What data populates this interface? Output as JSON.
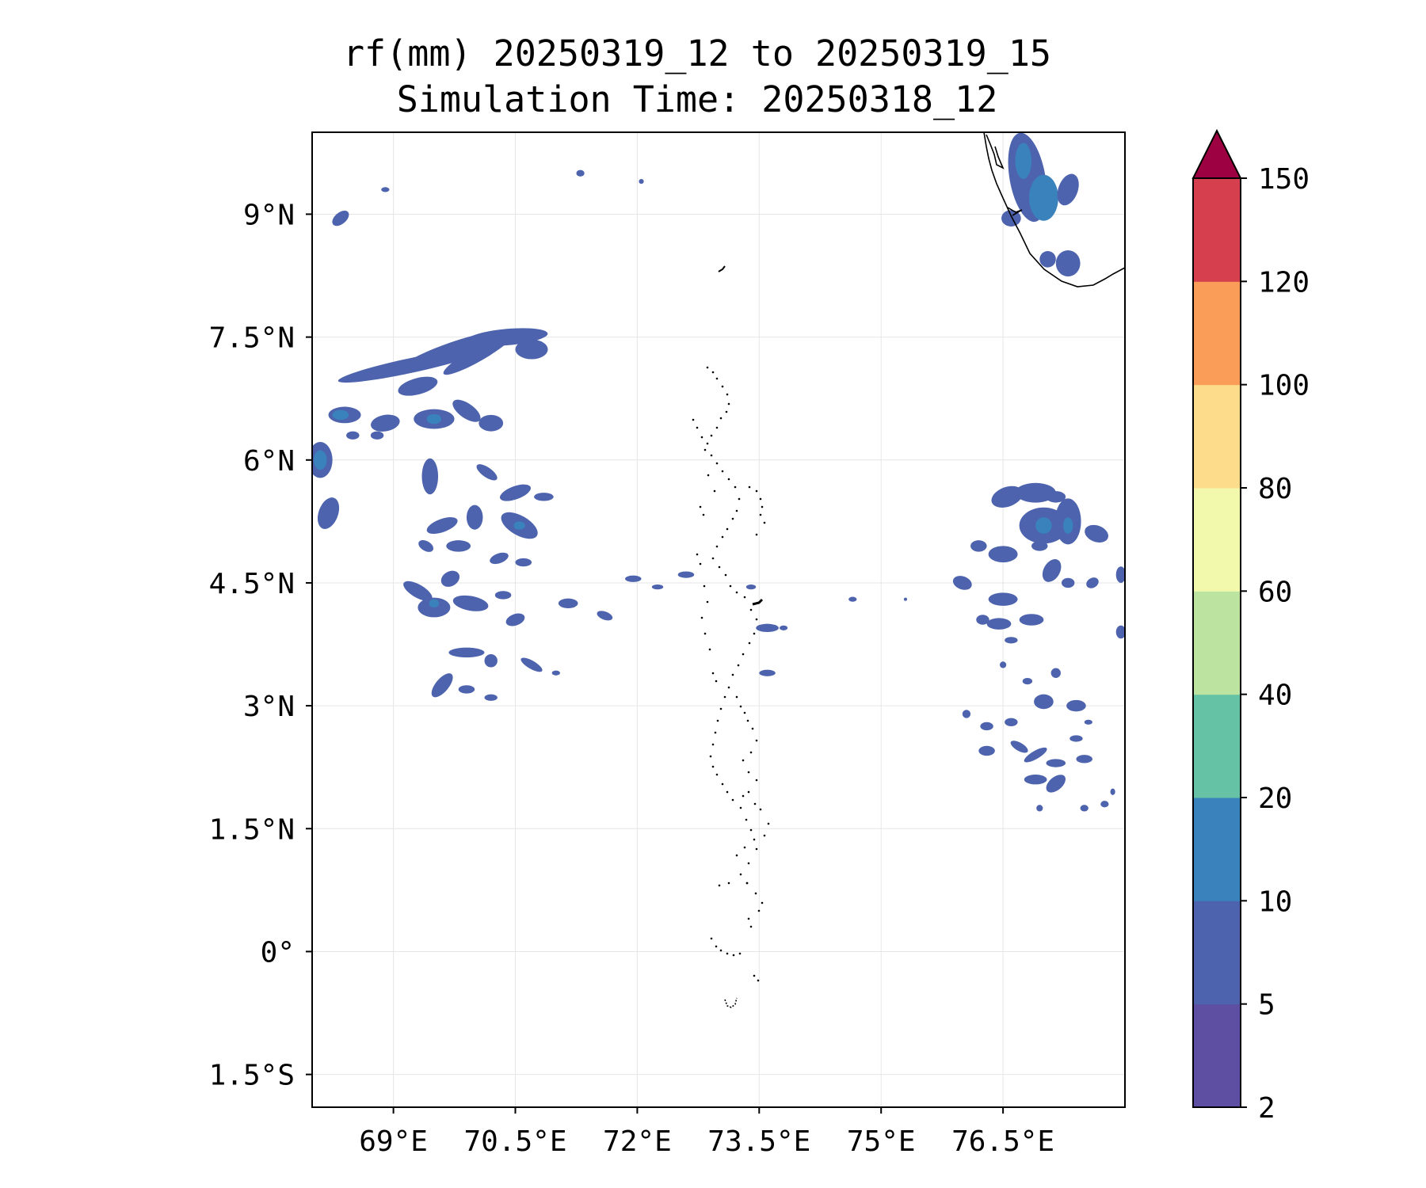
{
  "title": "rf(mm) 20250319_12 to 20250319_15",
  "subtitle": "Simulation Time: 20250318_12",
  "chart_data": {
    "type": "contourf map",
    "xlim": [
      68.0,
      78.0
    ],
    "ylim": [
      -1.9,
      10.0
    ],
    "grid": true,
    "x_ticks": [
      {
        "value": 69.0,
        "label": "69°E"
      },
      {
        "value": 70.5,
        "label": "70.5°E"
      },
      {
        "value": 72.0,
        "label": "72°E"
      },
      {
        "value": 73.5,
        "label": "73.5°E"
      },
      {
        "value": 75.0,
        "label": "75°E"
      },
      {
        "value": 76.5,
        "label": "76.5°E"
      }
    ],
    "y_ticks": [
      {
        "value": 9.0,
        "label": "9°N"
      },
      {
        "value": 7.5,
        "label": "7.5°N"
      },
      {
        "value": 6.0,
        "label": "6°N"
      },
      {
        "value": 4.5,
        "label": "4.5°N"
      },
      {
        "value": 3.0,
        "label": "3°N"
      },
      {
        "value": 1.5,
        "label": "1.5°N"
      },
      {
        "value": 0.0,
        "label": "0°"
      },
      {
        "value": -1.5,
        "label": "1.5°S"
      }
    ],
    "colorbar": {
      "extend": "max",
      "levels": [
        2,
        5,
        10,
        20,
        40,
        60,
        80,
        100,
        120,
        150
      ],
      "labels": [
        "2",
        "5",
        "10",
        "20",
        "40",
        "60",
        "80",
        "100",
        "120",
        "150"
      ],
      "colors": [
        "#5e4fa2",
        "#4d63ad",
        "#3a82bc",
        "#66c2a5",
        "#bce4a0",
        "#f2f9ad",
        "#fddd8b",
        "#f99d59",
        "#d6404e",
        "#9e0142"
      ]
    },
    "rain_cells": [
      {
        "lon": 69.2,
        "lat": 7.15,
        "rx": 0.9,
        "ry": 0.09,
        "rot": -12,
        "level": 5
      },
      {
        "lon": 69.8,
        "lat": 7.35,
        "rx": 0.7,
        "ry": 0.11,
        "rot": -18,
        "level": 5
      },
      {
        "lon": 70.4,
        "lat": 7.5,
        "rx": 0.5,
        "ry": 0.1,
        "rot": -5,
        "level": 5
      },
      {
        "lon": 70.05,
        "lat": 7.3,
        "rx": 0.5,
        "ry": 0.09,
        "rot": -30,
        "level": 5
      },
      {
        "lon": 70.7,
        "lat": 7.35,
        "rx": 0.2,
        "ry": 0.12,
        "rot": 0,
        "level": 5
      },
      {
        "lon": 68.35,
        "lat": 8.95,
        "rx": 0.12,
        "ry": 0.07,
        "rot": -40,
        "level": 5
      },
      {
        "lon": 68.9,
        "lat": 9.3,
        "rx": 0.05,
        "ry": 0.03,
        "rot": 0,
        "level": 5
      },
      {
        "lon": 71.3,
        "lat": 9.5,
        "rx": 0.05,
        "ry": 0.04,
        "rot": 0,
        "level": 5
      },
      {
        "lon": 72.05,
        "lat": 9.4,
        "rx": 0.03,
        "ry": 0.03,
        "rot": 0,
        "level": 5
      },
      {
        "lon": 68.4,
        "lat": 6.55,
        "rx": 0.2,
        "ry": 0.1,
        "rot": 0,
        "level": 5
      },
      {
        "lon": 68.35,
        "lat": 6.55,
        "rx": 0.1,
        "ry": 0.06,
        "rot": 0,
        "level": 10
      },
      {
        "lon": 68.9,
        "lat": 6.45,
        "rx": 0.18,
        "ry": 0.1,
        "rot": -10,
        "level": 5
      },
      {
        "lon": 69.3,
        "lat": 6.9,
        "rx": 0.25,
        "ry": 0.1,
        "rot": -15,
        "level": 5
      },
      {
        "lon": 69.5,
        "lat": 6.5,
        "rx": 0.25,
        "ry": 0.12,
        "rot": 0,
        "level": 5
      },
      {
        "lon": 69.5,
        "lat": 6.5,
        "rx": 0.09,
        "ry": 0.06,
        "rot": 0,
        "level": 10
      },
      {
        "lon": 69.9,
        "lat": 6.6,
        "rx": 0.2,
        "ry": 0.09,
        "rot": 35,
        "level": 5
      },
      {
        "lon": 70.2,
        "lat": 6.45,
        "rx": 0.15,
        "ry": 0.1,
        "rot": 0,
        "level": 5
      },
      {
        "lon": 68.1,
        "lat": 6.0,
        "rx": 0.15,
        "ry": 0.22,
        "rot": 0,
        "level": 5
      },
      {
        "lon": 68.1,
        "lat": 6.0,
        "rx": 0.08,
        "ry": 0.12,
        "rot": 0,
        "level": 10
      },
      {
        "lon": 68.2,
        "lat": 5.35,
        "rx": 0.12,
        "ry": 0.2,
        "rot": 20,
        "level": 5
      },
      {
        "lon": 68.5,
        "lat": 6.3,
        "rx": 0.08,
        "ry": 0.05,
        "rot": 0,
        "level": 5
      },
      {
        "lon": 68.8,
        "lat": 6.3,
        "rx": 0.08,
        "ry": 0.05,
        "rot": 0,
        "level": 5
      },
      {
        "lon": 69.45,
        "lat": 5.8,
        "rx": 0.1,
        "ry": 0.22,
        "rot": 0,
        "level": 5
      },
      {
        "lon": 70.15,
        "lat": 5.85,
        "rx": 0.15,
        "ry": 0.06,
        "rot": 35,
        "level": 5
      },
      {
        "lon": 70.5,
        "lat": 5.6,
        "rx": 0.2,
        "ry": 0.08,
        "rot": -20,
        "level": 5
      },
      {
        "lon": 70.85,
        "lat": 5.55,
        "rx": 0.12,
        "ry": 0.05,
        "rot": 0,
        "level": 5
      },
      {
        "lon": 69.6,
        "lat": 5.2,
        "rx": 0.2,
        "ry": 0.08,
        "rot": -20,
        "level": 5
      },
      {
        "lon": 70.0,
        "lat": 5.3,
        "rx": 0.1,
        "ry": 0.15,
        "rot": 0,
        "level": 5
      },
      {
        "lon": 70.55,
        "lat": 5.2,
        "rx": 0.25,
        "ry": 0.12,
        "rot": 30,
        "level": 5
      },
      {
        "lon": 70.55,
        "lat": 5.2,
        "rx": 0.07,
        "ry": 0.05,
        "rot": 0,
        "level": 10
      },
      {
        "lon": 69.4,
        "lat": 4.95,
        "rx": 0.1,
        "ry": 0.06,
        "rot": 30,
        "level": 5
      },
      {
        "lon": 69.8,
        "lat": 4.95,
        "rx": 0.15,
        "ry": 0.07,
        "rot": 0,
        "level": 5
      },
      {
        "lon": 70.3,
        "lat": 4.8,
        "rx": 0.12,
        "ry": 0.06,
        "rot": -20,
        "level": 5
      },
      {
        "lon": 70.6,
        "lat": 4.75,
        "rx": 0.1,
        "ry": 0.05,
        "rot": 0,
        "level": 5
      },
      {
        "lon": 69.7,
        "lat": 4.55,
        "rx": 0.12,
        "ry": 0.09,
        "rot": -30,
        "level": 5
      },
      {
        "lon": 69.3,
        "lat": 4.4,
        "rx": 0.2,
        "ry": 0.08,
        "rot": 30,
        "level": 5
      },
      {
        "lon": 69.5,
        "lat": 4.2,
        "rx": 0.2,
        "ry": 0.12,
        "rot": 0,
        "level": 5
      },
      {
        "lon": 69.5,
        "lat": 4.25,
        "rx": 0.06,
        "ry": 0.05,
        "rot": 0,
        "level": 10
      },
      {
        "lon": 69.95,
        "lat": 4.25,
        "rx": 0.22,
        "ry": 0.09,
        "rot": 10,
        "level": 5
      },
      {
        "lon": 70.35,
        "lat": 4.35,
        "rx": 0.1,
        "ry": 0.05,
        "rot": 0,
        "level": 5
      },
      {
        "lon": 70.5,
        "lat": 4.05,
        "rx": 0.12,
        "ry": 0.07,
        "rot": -20,
        "level": 5
      },
      {
        "lon": 71.15,
        "lat": 4.25,
        "rx": 0.12,
        "ry": 0.06,
        "rot": 0,
        "level": 5
      },
      {
        "lon": 71.6,
        "lat": 4.1,
        "rx": 0.1,
        "ry": 0.05,
        "rot": 20,
        "level": 5
      },
      {
        "lon": 69.9,
        "lat": 3.65,
        "rx": 0.22,
        "ry": 0.06,
        "rot": 0,
        "level": 5
      },
      {
        "lon": 70.2,
        "lat": 3.55,
        "rx": 0.08,
        "ry": 0.08,
        "rot": 0,
        "level": 5
      },
      {
        "lon": 69.6,
        "lat": 3.25,
        "rx": 0.18,
        "ry": 0.08,
        "rot": -50,
        "level": 5
      },
      {
        "lon": 69.9,
        "lat": 3.2,
        "rx": 0.1,
        "ry": 0.05,
        "rot": 0,
        "level": 5
      },
      {
        "lon": 70.2,
        "lat": 3.1,
        "rx": 0.08,
        "ry": 0.04,
        "rot": 0,
        "level": 5
      },
      {
        "lon": 70.7,
        "lat": 3.5,
        "rx": 0.15,
        "ry": 0.05,
        "rot": 30,
        "level": 5
      },
      {
        "lon": 71.0,
        "lat": 3.4,
        "rx": 0.05,
        "ry": 0.03,
        "rot": 0,
        "level": 5
      },
      {
        "lon": 71.95,
        "lat": 4.55,
        "rx": 0.1,
        "ry": 0.04,
        "rot": 0,
        "level": 5
      },
      {
        "lon": 72.25,
        "lat": 4.45,
        "rx": 0.07,
        "ry": 0.03,
        "rot": 0,
        "level": 5
      },
      {
        "lon": 72.6,
        "lat": 4.6,
        "rx": 0.1,
        "ry": 0.04,
        "rot": 0,
        "level": 5
      },
      {
        "lon": 73.4,
        "lat": 4.45,
        "rx": 0.06,
        "ry": 0.03,
        "rot": 0,
        "level": 5
      },
      {
        "lon": 73.6,
        "lat": 3.95,
        "rx": 0.14,
        "ry": 0.05,
        "rot": 0,
        "level": 5
      },
      {
        "lon": 73.6,
        "lat": 3.4,
        "rx": 0.1,
        "ry": 0.04,
        "rot": 0,
        "level": 5
      },
      {
        "lon": 73.8,
        "lat": 3.95,
        "rx": 0.05,
        "ry": 0.03,
        "rot": 0,
        "level": 5
      },
      {
        "lon": 74.65,
        "lat": 4.3,
        "rx": 0.05,
        "ry": 0.03,
        "rot": 0,
        "level": 5
      },
      {
        "lon": 75.3,
        "lat": 4.3,
        "rx": 0.02,
        "ry": 0.02,
        "rot": 0,
        "level": 5
      },
      {
        "lon": 76.25,
        "lat": 4.05,
        "rx": 0.08,
        "ry": 0.06,
        "rot": 0,
        "level": 5
      },
      {
        "lon": 76.55,
        "lat": 5.55,
        "rx": 0.2,
        "ry": 0.12,
        "rot": -20,
        "level": 5
      },
      {
        "lon": 76.9,
        "lat": 5.6,
        "rx": 0.25,
        "ry": 0.12,
        "rot": 0,
        "level": 5
      },
      {
        "lon": 77.15,
        "lat": 5.55,
        "rx": 0.12,
        "ry": 0.07,
        "rot": 0,
        "level": 5
      },
      {
        "lon": 77.0,
        "lat": 5.2,
        "rx": 0.3,
        "ry": 0.22,
        "rot": 0,
        "level": 5
      },
      {
        "lon": 77.0,
        "lat": 5.2,
        "rx": 0.1,
        "ry": 0.1,
        "rot": 0,
        "level": 10
      },
      {
        "lon": 77.3,
        "lat": 5.25,
        "rx": 0.16,
        "ry": 0.28,
        "rot": 0,
        "level": 5
      },
      {
        "lon": 77.3,
        "lat": 5.2,
        "rx": 0.06,
        "ry": 0.1,
        "rot": 0,
        "level": 10
      },
      {
        "lon": 77.65,
        "lat": 5.1,
        "rx": 0.15,
        "ry": 0.1,
        "rot": 20,
        "level": 5
      },
      {
        "lon": 76.2,
        "lat": 4.95,
        "rx": 0.1,
        "ry": 0.07,
        "rot": 0,
        "level": 5
      },
      {
        "lon": 76.5,
        "lat": 4.85,
        "rx": 0.18,
        "ry": 0.1,
        "rot": 0,
        "level": 5
      },
      {
        "lon": 76.95,
        "lat": 4.95,
        "rx": 0.1,
        "ry": 0.06,
        "rot": 0,
        "level": 5
      },
      {
        "lon": 77.1,
        "lat": 4.65,
        "rx": 0.1,
        "ry": 0.15,
        "rot": 30,
        "level": 5
      },
      {
        "lon": 76.0,
        "lat": 4.5,
        "rx": 0.12,
        "ry": 0.08,
        "rot": 20,
        "level": 5
      },
      {
        "lon": 76.5,
        "lat": 4.3,
        "rx": 0.18,
        "ry": 0.08,
        "rot": 0,
        "level": 5
      },
      {
        "lon": 76.45,
        "lat": 4.0,
        "rx": 0.15,
        "ry": 0.07,
        "rot": 0,
        "level": 5
      },
      {
        "lon": 76.85,
        "lat": 4.05,
        "rx": 0.15,
        "ry": 0.07,
        "rot": 0,
        "level": 5
      },
      {
        "lon": 76.6,
        "lat": 3.8,
        "rx": 0.08,
        "ry": 0.04,
        "rot": 0,
        "level": 5
      },
      {
        "lon": 77.3,
        "lat": 4.5,
        "rx": 0.08,
        "ry": 0.06,
        "rot": 0,
        "level": 5
      },
      {
        "lon": 77.6,
        "lat": 4.5,
        "rx": 0.08,
        "ry": 0.06,
        "rot": -30,
        "level": 5
      },
      {
        "lon": 77.95,
        "lat": 4.6,
        "rx": 0.06,
        "ry": 0.1,
        "rot": 0,
        "level": 5
      },
      {
        "lon": 77.95,
        "lat": 3.9,
        "rx": 0.06,
        "ry": 0.08,
        "rot": 0,
        "level": 5
      },
      {
        "lon": 77.4,
        "lat": 3.0,
        "rx": 0.12,
        "ry": 0.07,
        "rot": 0,
        "level": 5
      },
      {
        "lon": 77.0,
        "lat": 3.05,
        "rx": 0.12,
        "ry": 0.09,
        "rot": 0,
        "level": 5
      },
      {
        "lon": 77.15,
        "lat": 3.4,
        "rx": 0.06,
        "ry": 0.06,
        "rot": 0,
        "level": 5
      },
      {
        "lon": 76.05,
        "lat": 2.9,
        "rx": 0.05,
        "ry": 0.05,
        "rot": 0,
        "level": 5
      },
      {
        "lon": 76.3,
        "lat": 2.75,
        "rx": 0.08,
        "ry": 0.05,
        "rot": 0,
        "level": 5
      },
      {
        "lon": 76.6,
        "lat": 2.8,
        "rx": 0.08,
        "ry": 0.05,
        "rot": 0,
        "level": 5
      },
      {
        "lon": 76.7,
        "lat": 2.5,
        "rx": 0.12,
        "ry": 0.05,
        "rot": 30,
        "level": 5
      },
      {
        "lon": 76.3,
        "lat": 2.45,
        "rx": 0.1,
        "ry": 0.06,
        "rot": 0,
        "level": 5
      },
      {
        "lon": 76.9,
        "lat": 2.4,
        "rx": 0.16,
        "ry": 0.05,
        "rot": -30,
        "level": 5
      },
      {
        "lon": 77.15,
        "lat": 2.3,
        "rx": 0.12,
        "ry": 0.05,
        "rot": 0,
        "level": 5
      },
      {
        "lon": 77.5,
        "lat": 2.35,
        "rx": 0.1,
        "ry": 0.05,
        "rot": 0,
        "level": 5
      },
      {
        "lon": 77.55,
        "lat": 2.8,
        "rx": 0.05,
        "ry": 0.03,
        "rot": 0,
        "level": 5
      },
      {
        "lon": 76.9,
        "lat": 2.1,
        "rx": 0.14,
        "ry": 0.06,
        "rot": 0,
        "level": 5
      },
      {
        "lon": 77.15,
        "lat": 2.05,
        "rx": 0.14,
        "ry": 0.08,
        "rot": -40,
        "level": 5
      },
      {
        "lon": 77.4,
        "lat": 2.6,
        "rx": 0.08,
        "ry": 0.04,
        "rot": 0,
        "level": 5
      },
      {
        "lon": 76.95,
        "lat": 1.75,
        "rx": 0.04,
        "ry": 0.04,
        "rot": 0,
        "level": 5
      },
      {
        "lon": 77.75,
        "lat": 1.8,
        "rx": 0.05,
        "ry": 0.04,
        "rot": 0,
        "level": 5
      },
      {
        "lon": 77.5,
        "lat": 1.75,
        "rx": 0.05,
        "ry": 0.04,
        "rot": 0,
        "level": 5
      },
      {
        "lon": 77.85,
        "lat": 1.95,
        "rx": 0.03,
        "ry": 0.04,
        "rot": 0,
        "level": 5
      },
      {
        "lon": 76.5,
        "lat": 3.5,
        "rx": 0.04,
        "ry": 0.04,
        "rot": 0,
        "level": 5
      },
      {
        "lon": 76.8,
        "lat": 3.3,
        "rx": 0.06,
        "ry": 0.04,
        "rot": 0,
        "level": 5
      },
      {
        "lon": 76.8,
        "lat": 9.45,
        "rx": 0.22,
        "ry": 0.55,
        "rot": -10,
        "level": 5
      },
      {
        "lon": 77.0,
        "lat": 9.2,
        "rx": 0.18,
        "ry": 0.28,
        "rot": 0,
        "level": 10
      },
      {
        "lon": 76.75,
        "lat": 9.65,
        "rx": 0.1,
        "ry": 0.22,
        "rot": 0,
        "level": 10
      },
      {
        "lon": 77.3,
        "lat": 9.3,
        "rx": 0.12,
        "ry": 0.2,
        "rot": 20,
        "level": 5
      },
      {
        "lon": 77.3,
        "lat": 8.4,
        "rx": 0.15,
        "ry": 0.16,
        "rot": 0,
        "level": 5
      },
      {
        "lon": 77.05,
        "lat": 8.45,
        "rx": 0.1,
        "ry": 0.1,
        "rot": 30,
        "level": 5
      },
      {
        "lon": 76.6,
        "lat": 8.95,
        "rx": 0.12,
        "ry": 0.1,
        "rot": 0,
        "level": 5
      }
    ]
  }
}
